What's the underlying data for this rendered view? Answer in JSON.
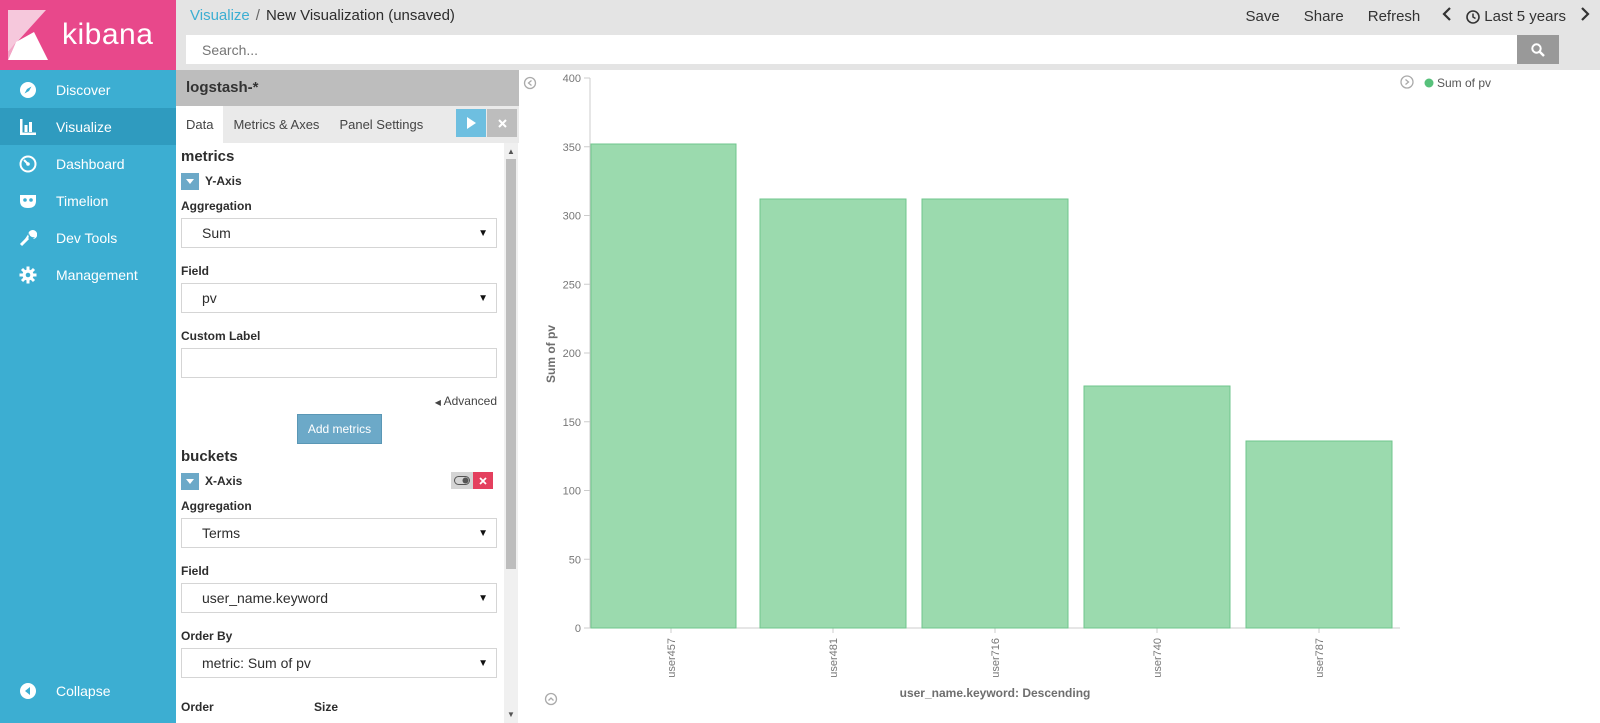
{
  "app": {
    "logo_text": "kibana"
  },
  "sidebar": {
    "items": [
      {
        "label": "Discover",
        "icon": "compass-icon"
      },
      {
        "label": "Visualize",
        "icon": "bar-chart-icon",
        "active": true
      },
      {
        "label": "Dashboard",
        "icon": "dashboard-gauge-icon"
      },
      {
        "label": "Timelion",
        "icon": "timelion-mask-icon"
      },
      {
        "label": "Dev Tools",
        "icon": "wrench-icon"
      },
      {
        "label": "Management",
        "icon": "gear-icon"
      }
    ],
    "collapse_label": "Collapse"
  },
  "header": {
    "breadcrumb_root": "Visualize",
    "breadcrumb_sep": "/",
    "breadcrumb_current": "New Visualization (unsaved)",
    "save": "Save",
    "share": "Share",
    "refresh": "Refresh",
    "time_range": "Last 5 years",
    "search_placeholder": "Search..."
  },
  "editor": {
    "index_pattern": "logstash-*",
    "tabs": [
      "Data",
      "Metrics & Axes",
      "Panel Settings"
    ],
    "metrics_heading": "metrics",
    "y_axis_title": "Y-Axis",
    "aggregation_label": "Aggregation",
    "y_aggregation": "Sum",
    "field_label": "Field",
    "y_field": "pv",
    "custom_label_label": "Custom Label",
    "custom_label_value": "",
    "advanced_label": "Advanced",
    "add_metrics_label": "Add metrics",
    "buckets_heading": "buckets",
    "x_axis_title": "X-Axis",
    "x_aggregation": "Terms",
    "x_field": "user_name.keyword",
    "order_by_label": "Order By",
    "order_by_value": "metric: Sum of pv",
    "order_label": "Order",
    "size_label": "Size"
  },
  "colors": {
    "sidebar": "#3caed2",
    "logo_bg": "#e8488b",
    "bar_fill": "#9bdaae",
    "bar_stroke": "#6fc68c",
    "legend_dot": "#57c17b"
  },
  "chart_data": {
    "type": "bar",
    "categories": [
      "user457",
      "user481",
      "user716",
      "user740",
      "user787"
    ],
    "series": [
      {
        "name": "Sum of pv",
        "values": [
          352,
          312,
          312,
          176,
          136
        ]
      }
    ],
    "xlabel": "user_name.keyword: Descending",
    "ylabel": "Sum of pv",
    "ylim": [
      0,
      400
    ],
    "yticks": [
      0,
      50,
      100,
      150,
      200,
      250,
      300,
      350,
      400
    ],
    "legend": "top-right",
    "grid": false
  }
}
